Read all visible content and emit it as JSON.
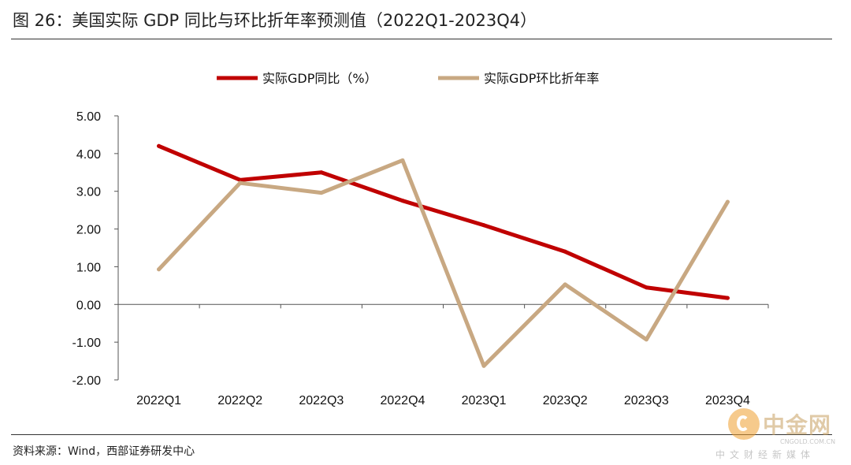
{
  "figure": {
    "title": "图 26：美国实际 GDP 同比与环比折年率预测值（2022Q1-2023Q4）",
    "source": "资料来源：Wind，西部证券研发中心"
  },
  "watermark": {
    "name": "中金网",
    "domain": "CNGOLD.COM.CN",
    "slogan": "中文财经新媒体",
    "icon": "cngold-logo-icon"
  },
  "chart_data": {
    "type": "line",
    "title": "",
    "xlabel": "",
    "ylabel": "",
    "categories": [
      "2022Q1",
      "2022Q2",
      "2022Q3",
      "2022Q4",
      "2023Q1",
      "2023Q2",
      "2023Q3",
      "2023Q4"
    ],
    "ylim": [
      -2,
      5
    ],
    "yticks": [
      -2,
      -1,
      0,
      1,
      2,
      3,
      4,
      5
    ],
    "ytick_labels": [
      "-2.00",
      "-1.00",
      "0.00",
      "1.00",
      "2.00",
      "3.00",
      "4.00",
      "5.00"
    ],
    "grid": false,
    "legend_position": "top",
    "series": [
      {
        "name": "实际GDP同比（%）",
        "color": "#c00000",
        "values": [
          4.2,
          3.3,
          3.5,
          2.75,
          2.1,
          1.4,
          0.45,
          0.17
        ]
      },
      {
        "name": "实际GDP环比折年率",
        "color": "#c8a882",
        "values": [
          0.93,
          3.22,
          2.96,
          3.82,
          -1.63,
          0.53,
          -0.93,
          2.72
        ]
      }
    ]
  }
}
